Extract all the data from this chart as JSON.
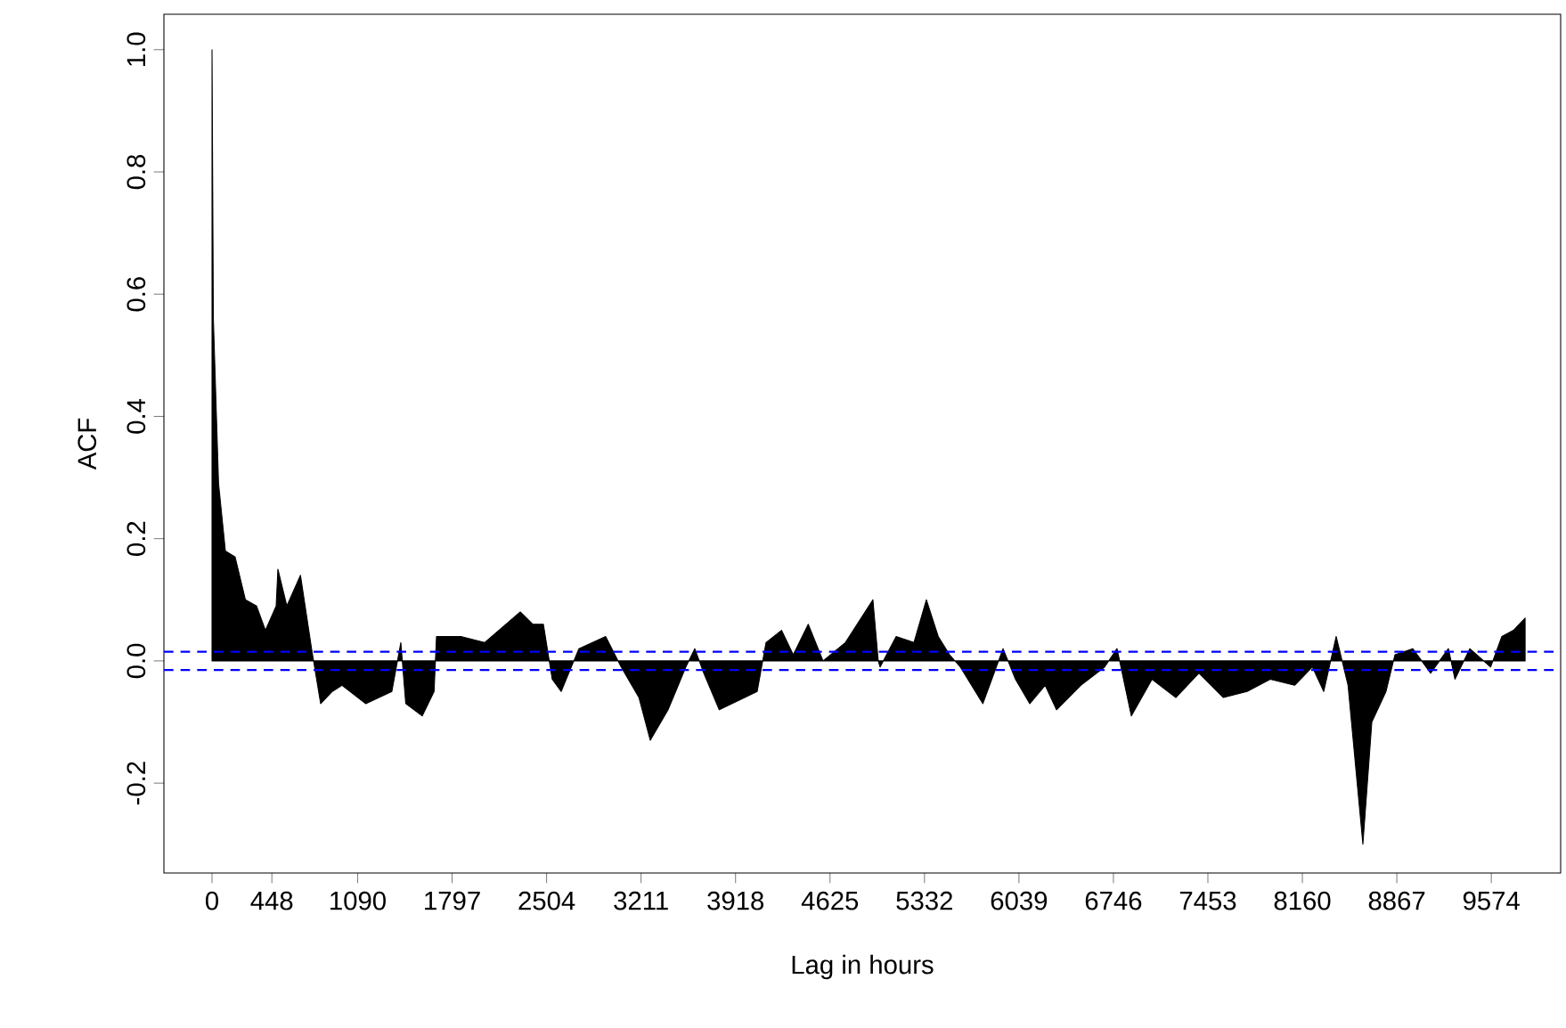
{
  "chart_data": {
    "type": "area",
    "xlabel": "Lag in hours",
    "ylabel": "ACF",
    "x": [
      0,
      10,
      49,
      100,
      173,
      250,
      333,
      400,
      480,
      493,
      560,
      662,
      745,
      813,
      900,
      973,
      1150,
      1346,
      1413,
      1450,
      1573,
      1662,
      1680,
      1862,
      2040,
      2307,
      2400,
      2480,
      2546,
      2613,
      2746,
      2946,
      3062,
      3195,
      3280,
      3413,
      3546,
      3613,
      3680,
      3796,
      4080,
      4146,
      4262,
      4350,
      4462,
      4573,
      4740,
      4946,
      4986,
      5000,
      5120,
      5253,
      5346,
      5435,
      5520,
      5600,
      5769,
      5920,
      6013,
      6120,
      6235,
      6320,
      6502,
      6680,
      6773,
      6880,
      7035,
      7213,
      7386,
      7569,
      7746,
      7920,
      8102,
      8235,
      8320,
      8413,
      8502,
      8613,
      8680,
      8786,
      8853,
      8986,
      9120,
      9253,
      9302,
      9413,
      9569,
      9653,
      9740,
      9827
    ],
    "series": [
      {
        "color": "#000000",
        "values": [
          1.0,
          0.56,
          0.29,
          0.18,
          0.17,
          0.1,
          0.09,
          0.05,
          0.09,
          0.15,
          0.09,
          0.14,
          0.02,
          -0.07,
          -0.05,
          -0.04,
          -0.07,
          -0.05,
          0.03,
          -0.07,
          -0.09,
          -0.05,
          0.04,
          0.04,
          0.03,
          0.08,
          0.06,
          0.06,
          -0.03,
          -0.05,
          0.02,
          0.04,
          -0.01,
          -0.06,
          -0.13,
          -0.08,
          -0.01,
          0.02,
          -0.02,
          -0.08,
          -0.05,
          0.03,
          0.05,
          0.01,
          0.06,
          0.0,
          0.03,
          0.1,
          0.0,
          -0.01,
          0.04,
          0.03,
          0.1,
          0.04,
          0.01,
          -0.01,
          -0.07,
          0.02,
          -0.03,
          -0.07,
          -0.04,
          -0.08,
          -0.04,
          -0.01,
          0.02,
          -0.09,
          -0.03,
          -0.06,
          -0.02,
          -0.06,
          -0.05,
          -0.03,
          -0.04,
          -0.01,
          -0.05,
          0.04,
          -0.04,
          -0.3,
          -0.1,
          -0.05,
          0.01,
          0.02,
          -0.02,
          0.02,
          -0.03,
          0.02,
          -0.01,
          0.04,
          0.05,
          0.07
        ]
      }
    ],
    "xlim": [
      -360,
      10093
    ],
    "ylim": [
      -0.347,
      1.058
    ],
    "xticks": [
      0,
      448,
      1090,
      1797,
      2504,
      3211,
      3918,
      4625,
      5332,
      6039,
      6746,
      7453,
      8160,
      8867,
      9574
    ],
    "yticks": [
      {
        "value": -0.2,
        "label": "-0.2"
      },
      {
        "value": 0,
        "label": "0.0"
      },
      {
        "value": 0.2,
        "label": "0.2"
      },
      {
        "value": 0.4,
        "label": "0.4"
      },
      {
        "value": 0.6,
        "label": "0.6"
      },
      {
        "value": 0.8,
        "label": "0.8"
      },
      {
        "value": 1,
        "label": "1.0"
      }
    ],
    "ref_lines": [
      {
        "axis": "y",
        "value": 0.015,
        "color": "#0000ff",
        "line_style": "dashed"
      },
      {
        "axis": "y",
        "value": -0.015,
        "color": "#0000ff",
        "line_style": "dashed"
      }
    ],
    "grid": false
  }
}
